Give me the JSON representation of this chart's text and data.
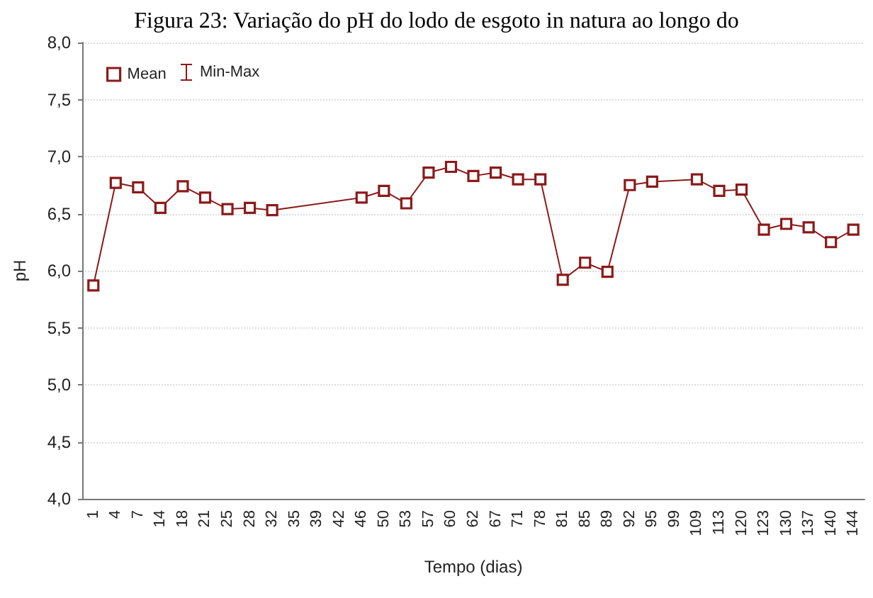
{
  "chart_data": {
    "type": "line",
    "title": "Figura 23: Variação do pH do lodo de esgoto in natura ao longo do",
    "xlabel": "Tempo (dias)",
    "ylabel": "pH",
    "categories": [
      "1",
      "4",
      "7",
      "14",
      "18",
      "21",
      "25",
      "28",
      "32",
      "35",
      "39",
      "42",
      "46",
      "50",
      "53",
      "57",
      "60",
      "62",
      "67",
      "71",
      "78",
      "81",
      "85",
      "89",
      "92",
      "95",
      "99",
      "109",
      "113",
      "120",
      "123",
      "130",
      "137",
      "140",
      "144"
    ],
    "series": [
      {
        "name": "Mean",
        "color": "#8b1a1a",
        "values": [
          5.87,
          6.77,
          6.73,
          6.55,
          6.74,
          6.64,
          6.54,
          6.55,
          6.53,
          null,
          null,
          null,
          6.64,
          6.7,
          6.59,
          6.86,
          6.91,
          6.83,
          6.86,
          6.8,
          6.8,
          5.92,
          6.07,
          5.99,
          6.75,
          6.78,
          null,
          6.8,
          6.7,
          6.71,
          6.36,
          6.41,
          6.38,
          6.25,
          6.36
        ]
      }
    ],
    "annotations": [
      "Min-Max"
    ],
    "ylim": [
      4,
      8
    ],
    "yticks": [
      {
        "value": 4,
        "label": "4,0"
      },
      {
        "value": 4.5,
        "label": "4,5"
      },
      {
        "value": 5,
        "label": "5,0"
      },
      {
        "value": 5.5,
        "label": "5,5"
      },
      {
        "value": 6,
        "label": "6,0"
      },
      {
        "value": 6.5,
        "label": "6,5"
      },
      {
        "value": 7,
        "label": "7,0"
      },
      {
        "value": 7.5,
        "label": "7,5"
      },
      {
        "value": 8,
        "label": "8,0"
      }
    ],
    "grid": "y",
    "legend": "top left",
    "marker": "square",
    "line_style": "solid"
  }
}
